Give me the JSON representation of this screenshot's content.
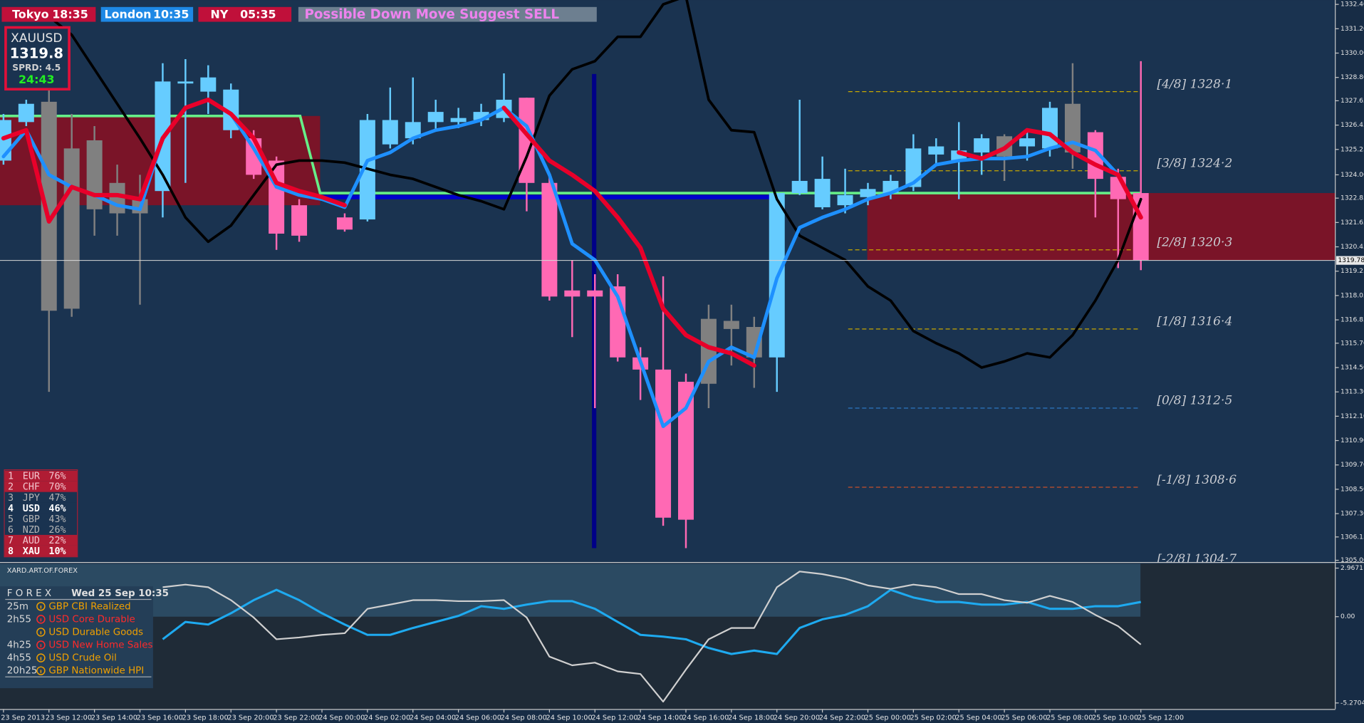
{
  "sessions": [
    {
      "city": "Tokyo",
      "time": "18:35"
    },
    {
      "city": "London",
      "time": "10:35"
    },
    {
      "city": "NY",
      "time": "05:35"
    }
  ],
  "signal": "Possible Down Move Suggest SELL",
  "symbol_box": {
    "symbol": "XAUUSD",
    "price": "1319.8",
    "spread": "SPRD: 4.5",
    "timer": "24:43"
  },
  "strength": [
    {
      "rank": "1",
      "currency": "EUR",
      "value": "76%"
    },
    {
      "rank": "2",
      "currency": "CHF",
      "value": "70%"
    },
    {
      "rank": "3",
      "currency": "JPY",
      "value": "47%"
    },
    {
      "rank": "4",
      "currency": "USD",
      "value": "46%"
    },
    {
      "rank": "5",
      "currency": "GBP",
      "value": "43%"
    },
    {
      "rank": "6",
      "currency": "NZD",
      "value": "26%"
    },
    {
      "rank": "7",
      "currency": "AUD",
      "value": "22%"
    },
    {
      "rank": "8",
      "currency": "XAU",
      "value": "10%"
    }
  ],
  "chart": {
    "ylim": [
      1305,
      1332.4
    ],
    "price_ticks": [
      {
        "value": 1332.4,
        "label": "1332.40"
      },
      {
        "value": 1331.2,
        "label": "1331.20"
      },
      {
        "value": 1330,
        "label": "1330.00"
      },
      {
        "value": 1328.8,
        "label": "1328.80"
      },
      {
        "value": 1327.65,
        "label": "1327.65"
      },
      {
        "value": 1326.45,
        "label": "1326.45"
      },
      {
        "value": 1325.25,
        "label": "1325.25"
      },
      {
        "value": 1324,
        "label": "1324.00"
      },
      {
        "value": 1322.85,
        "label": "1322.85"
      },
      {
        "value": 1321.65,
        "label": "1321.65"
      },
      {
        "value": 1320.45,
        "label": "1320.45"
      },
      {
        "value": 1319.25,
        "label": "1319.25"
      },
      {
        "value": 1318.05,
        "label": "1318.05"
      },
      {
        "value": 1316.85,
        "label": "1316.85"
      },
      {
        "value": 1315.7,
        "label": "1315.70"
      },
      {
        "value": 1314.5,
        "label": "1314.50"
      },
      {
        "value": 1313.3,
        "label": "1313.30"
      },
      {
        "value": 1312.1,
        "label": "1312.10"
      },
      {
        "value": 1310.9,
        "label": "1310.90"
      },
      {
        "value": 1309.7,
        "label": "1309.70"
      },
      {
        "value": 1308.5,
        "label": "1308.50"
      },
      {
        "value": 1307.3,
        "label": "1307.30"
      },
      {
        "value": 1306.15,
        "label": "1306.15"
      },
      {
        "value": 1305,
        "label": "1305.00"
      }
    ],
    "current_price": {
      "value": 1319.78,
      "label": "1319.78"
    },
    "time_labels": [
      "23 Sep 2013",
      "23 Sep 12:00",
      "23 Sep 14:00",
      "23 Sep 16:00",
      "23 Sep 18:00",
      "23 Sep 20:00",
      "23 Sep 22:00",
      "24 Sep 00:00",
      "24 Sep 02:00",
      "24 Sep 04:00",
      "24 Sep 06:00",
      "24 Sep 08:00",
      "24 Sep 10:00",
      "24 Sep 12:00",
      "24 Sep 14:00",
      "24 Sep 16:00",
      "24 Sep 18:00",
      "24 Sep 20:00",
      "24 Sep 22:00",
      "25 Sep 00:00",
      "25 Sep 02:00",
      "25 Sep 04:00",
      "25 Sep 06:00",
      "25 Sep 08:00",
      "25 Sep 10:00",
      "25 Sep 12:00"
    ],
    "candles": {
      "open": [
        1324.7,
        1326.6,
        1327.6,
        1325.3,
        1325.7,
        1323.6,
        1322.8,
        1323.2,
        1328.5,
        1328.1,
        1326.2,
        1325.8,
        1324.7,
        1322.5,
        null,
        1321.9,
        1321.8,
        1325.5,
        1325.8,
        1326.6,
        1326.6,
        1326.7,
        1326.8,
        1327.8,
        1323.6,
        1318.3,
        1318.3,
        1318.5,
        1315.0,
        1314.4,
        1313.8,
        1313.7,
        1316.8,
        1316.5,
        1315.0,
        1323.1,
        1322.4,
        1322.5,
        1322.9,
        1323.1,
        1323.4,
        1325.0,
        1324.7,
        1325.1,
        1325.9,
        1325.4,
        1325.3,
        1327.5,
        1326.1,
        1323.9,
        1323.1
      ],
      "high": [
        1327.0,
        1327.7,
        1330.0,
        1327.0,
        1326.4,
        1324.5,
        1324.0,
        1329.5,
        1329.7,
        1329.4,
        1328.5,
        1326.2,
        1324.9,
        1322.8,
        null,
        1322.1,
        1327.0,
        1328.3,
        1328.8,
        1327.7,
        1327.3,
        1327.5,
        1329.0,
        1327.8,
        1324.0,
        1319.8,
        1319.1,
        1319.1,
        1315.5,
        1319.0,
        1314.2,
        1317.6,
        1317.6,
        1317.0,
        1323.1,
        1327.7,
        1324.9,
        1324.3,
        1323.6,
        1324.0,
        1326.0,
        1325.8,
        1326.6,
        1326.0,
        1326.0,
        1326.2,
        1327.6,
        1329.5,
        1326.2,
        1324.3,
        1329.6
      ],
      "low": [
        1324.5,
        1326.4,
        1313.3,
        1317.0,
        1321.0,
        1321.0,
        1317.6,
        1321.9,
        1323.6,
        1327.0,
        1325.8,
        1323.8,
        1320.3,
        1320.7,
        null,
        1321.2,
        1321.7,
        1325.3,
        1325.5,
        1326.2,
        1326.3,
        1326.4,
        1326.6,
        1322.2,
        1317.8,
        1316.0,
        1312.5,
        1314.8,
        1312.9,
        1306.7,
        1305.6,
        1312.5,
        1314.6,
        1313.5,
        1313.3,
        1323.0,
        1322.3,
        1322.1,
        1322.5,
        1322.8,
        1323.2,
        1324.5,
        1322.8,
        1324.0,
        1323.7,
        1324.7,
        1324.9,
        1324.3,
        1321.9,
        1319.4,
        1319.3
      ],
      "close": [
        1326.7,
        1327.5,
        1317.3,
        1317.4,
        1322.3,
        1322.1,
        1322.1,
        1328.6,
        1328.6,
        1328.8,
        1328.2,
        1324.0,
        1321.1,
        1321.0,
        null,
        1321.3,
        1326.7,
        1326.7,
        1326.6,
        1327.1,
        1326.8,
        1327.1,
        1327.7,
        1323.6,
        1318.0,
        1318.0,
        1318.0,
        1315.0,
        1314.4,
        1307.1,
        1307.0,
        1316.9,
        1316.4,
        1315.0,
        1323.1,
        1323.7,
        1323.8,
        1323.0,
        1323.3,
        1323.7,
        1325.3,
        1325.4,
        1325.2,
        1325.8,
        1324.9,
        1325.8,
        1327.3,
        1325.1,
        1323.8,
        1322.8,
        1319.8
      ],
      "colors": [
        "#66ccff",
        "#66ccff",
        "#808080",
        "#808080",
        "#808080",
        "#808080",
        "#808080",
        "#66ccff",
        "#66ccff",
        "#66ccff",
        "#66ccff",
        "#ff69b4",
        "#ff69b4",
        "#ff69b4",
        null,
        "#ff69b4",
        "#66ccff",
        "#66ccff",
        "#66ccff",
        "#66ccff",
        "#66ccff",
        "#66ccff",
        "#66ccff",
        "#ff69b4",
        "#ff69b4",
        "#ff69b4",
        "#ff69b4",
        "#ff69b4",
        "#ff69b4",
        "#ff69b4",
        "#ff69b4",
        "#808080",
        "#808080",
        "#808080",
        "#66ccff",
        "#66ccff",
        "#66ccff",
        "#66ccff",
        "#66ccff",
        "#66ccff",
        "#66ccff",
        "#66ccff",
        "#66ccff",
        "#66ccff",
        "#808080",
        "#66ccff",
        "#66ccff",
        "#808080",
        "#ff69b4",
        "#ff69b4",
        "#ff69b4"
      ]
    },
    "lines": [
      {
        "color": "#000000",
        "width": 3,
        "values": [
          null,
          null,
          1331.8,
          1330.9,
          1329.2,
          1327.5,
          1325.8,
          1324.0,
          1321.9,
          1320.7,
          1321.5,
          1323.0,
          1324.5,
          1324.7,
          1324.7,
          1324.6,
          1324.3,
          1324.0,
          1323.8,
          1323.4,
          1323.0,
          1322.7,
          1322.3,
          1324.9,
          1327.9,
          1329.2,
          1329.6,
          1330.8,
          1330.8,
          1332.4,
          1332.8,
          1327.7,
          1326.2,
          1326.1,
          1322.8,
          1321.0,
          1320.4,
          1319.8,
          1318.5,
          1317.8,
          1316.3,
          1315.7,
          1315.2,
          1314.5,
          1314.8,
          1315.2,
          1315.0,
          1316.1,
          1317.8,
          1319.8,
          1322.8
        ]
      },
      {
        "color": "#1e90ff",
        "width": 4,
        "values": [
          1324.9,
          1326.2,
          1324.0,
          1323.4,
          1323.0,
          1322.5,
          1322.3,
          1325.8,
          1327.3,
          1327.7,
          1327.0,
          1325.3,
          1323.4,
          1323.0,
          1322.8,
          1322.4,
          1324.7,
          1325.1,
          1325.8,
          1326.2,
          1326.4,
          1326.7,
          1327.3,
          1326.4,
          1324.0,
          1320.6,
          1319.8,
          1318.0,
          1314.8,
          1311.6,
          1312.5,
          1314.8,
          1315.5,
          1315.0,
          1318.9,
          1321.4,
          1321.9,
          1322.3,
          1322.8,
          1323.1,
          1323.6,
          1324.5,
          1324.7,
          1324.8,
          1324.8,
          1324.9,
          1325.3,
          1325.6,
          1325.2,
          1324.0,
          1321.9
        ]
      },
      {
        "color": "#e8002a",
        "width": 5,
        "values": [
          1325.8,
          1326.2,
          1321.7,
          1323.4,
          1323.0,
          1323.0,
          1322.8,
          1325.8,
          1327.3,
          1327.7,
          1327.0,
          1325.8,
          1323.6,
          1323.2,
          1322.9,
          1322.5,
          null,
          null,
          null,
          null,
          null,
          null,
          1327.3,
          1326.0,
          1324.7,
          1324.0,
          1323.2,
          1321.9,
          1320.4,
          1317.4,
          1316.1,
          1315.5,
          1315.2,
          1314.6,
          null,
          null,
          null,
          null,
          null,
          null,
          null,
          null,
          1325.1,
          1324.8,
          1325.3,
          1326.2,
          1326.0,
          1325.1,
          1324.5,
          1324.0,
          1321.9
        ]
      }
    ],
    "zones": [
      {
        "top": 1326.9,
        "bottom": 1322.5
      },
      {
        "top": 1323.1,
        "bottom": 1319.8
      }
    ],
    "green_line": [
      1326.9,
      1323.1
    ],
    "blue_line": 1322.9,
    "levels": [
      {
        "value": 1328.1,
        "label": "[4/8] 1328·1",
        "color": "#c8a800"
      },
      {
        "value": 1324.2,
        "label": "[3/8] 1324·2",
        "color": "#c8a800"
      },
      {
        "value": 1320.3,
        "label": "[2/8] 1320·3",
        "color": "#c8a800"
      },
      {
        "value": 1316.4,
        "label": "[1/8] 1316·4",
        "color": "#c8a800"
      },
      {
        "value": 1312.5,
        "label": "[0/8] 1312·5",
        "color": "#2f7fd0"
      },
      {
        "value": 1308.6,
        "label": "[-1/8] 1308·6",
        "color": "#c8502a"
      },
      {
        "value": 1304.7,
        "label": "[-2/8] 1304·7",
        "color": "#c8502a"
      }
    ]
  },
  "indicator": {
    "title": "XARD.ART.OF.FOREX",
    "ylim": [
      -5.2704,
      2.9671
    ],
    "yticks": [
      2.9671,
      {
        "value": 0,
        "label": "0.00"
      },
      -5.2704
    ],
    "series": [
      {
        "color": "#1eaaf0",
        "values": [
          null,
          null,
          null,
          null,
          null,
          null,
          null,
          -1.38,
          -0.32,
          -0.48,
          0.21,
          1.01,
          1.64,
          1.01,
          0.21,
          -0.48,
          -1.11,
          -1.11,
          -0.69,
          -0.32,
          0.05,
          0.64,
          0.48,
          0.74,
          0.95,
          0.95,
          0.48,
          -0.32,
          -1.11,
          -1.22,
          -1.38,
          -1.91,
          -2.28,
          -2.07,
          -2.28,
          -0.69,
          -0.16,
          0.11,
          0.64,
          1.64,
          1.17,
          0.9,
          0.9,
          0.74,
          0.74,
          0.9,
          0.48,
          0.48,
          0.64,
          0.64,
          0.9
        ]
      },
      {
        "color": "#d0d0d0",
        "values": [
          null,
          null,
          null,
          null,
          null,
          null,
          null,
          1.8,
          1.96,
          1.8,
          1.01,
          -0.05,
          -1.38,
          -1.27,
          -1.11,
          -1.01,
          0.48,
          0.74,
          1.01,
          1.01,
          0.95,
          0.95,
          1.01,
          -0.05,
          -2.44,
          -2.97,
          -2.81,
          -3.34,
          -3.5,
          -5.19,
          -3.23,
          -1.38,
          -0.69,
          -0.69,
          1.8,
          2.76,
          2.6,
          2.33,
          1.91,
          1.7,
          1.96,
          1.8,
          1.38,
          1.38,
          1.01,
          0.85,
          1.27,
          0.9,
          0.11,
          -0.58,
          -1.7
        ]
      }
    ]
  },
  "news": {
    "title": "F O R E X",
    "date": "Wed 25 Sep 10:35",
    "items": [
      {
        "time": "25m",
        "text": "GBP CBI Realized",
        "color": "#f0a000"
      },
      {
        "time": "2h55",
        "text": "USD Core Durable",
        "color": "#ff2a2a"
      },
      {
        "text": "USD Durable Goods",
        "color": "#f0a000"
      },
      {
        "time": "4h25",
        "text": "USD New Home Sales",
        "color": "#ff2a2a"
      },
      {
        "time": "4h55",
        "text": "USD Crude Oil",
        "color": "#f0a000"
      },
      {
        "time": "20h25",
        "text": "GBP Nationwide HPI",
        "color": "#f0a000"
      }
    ]
  }
}
